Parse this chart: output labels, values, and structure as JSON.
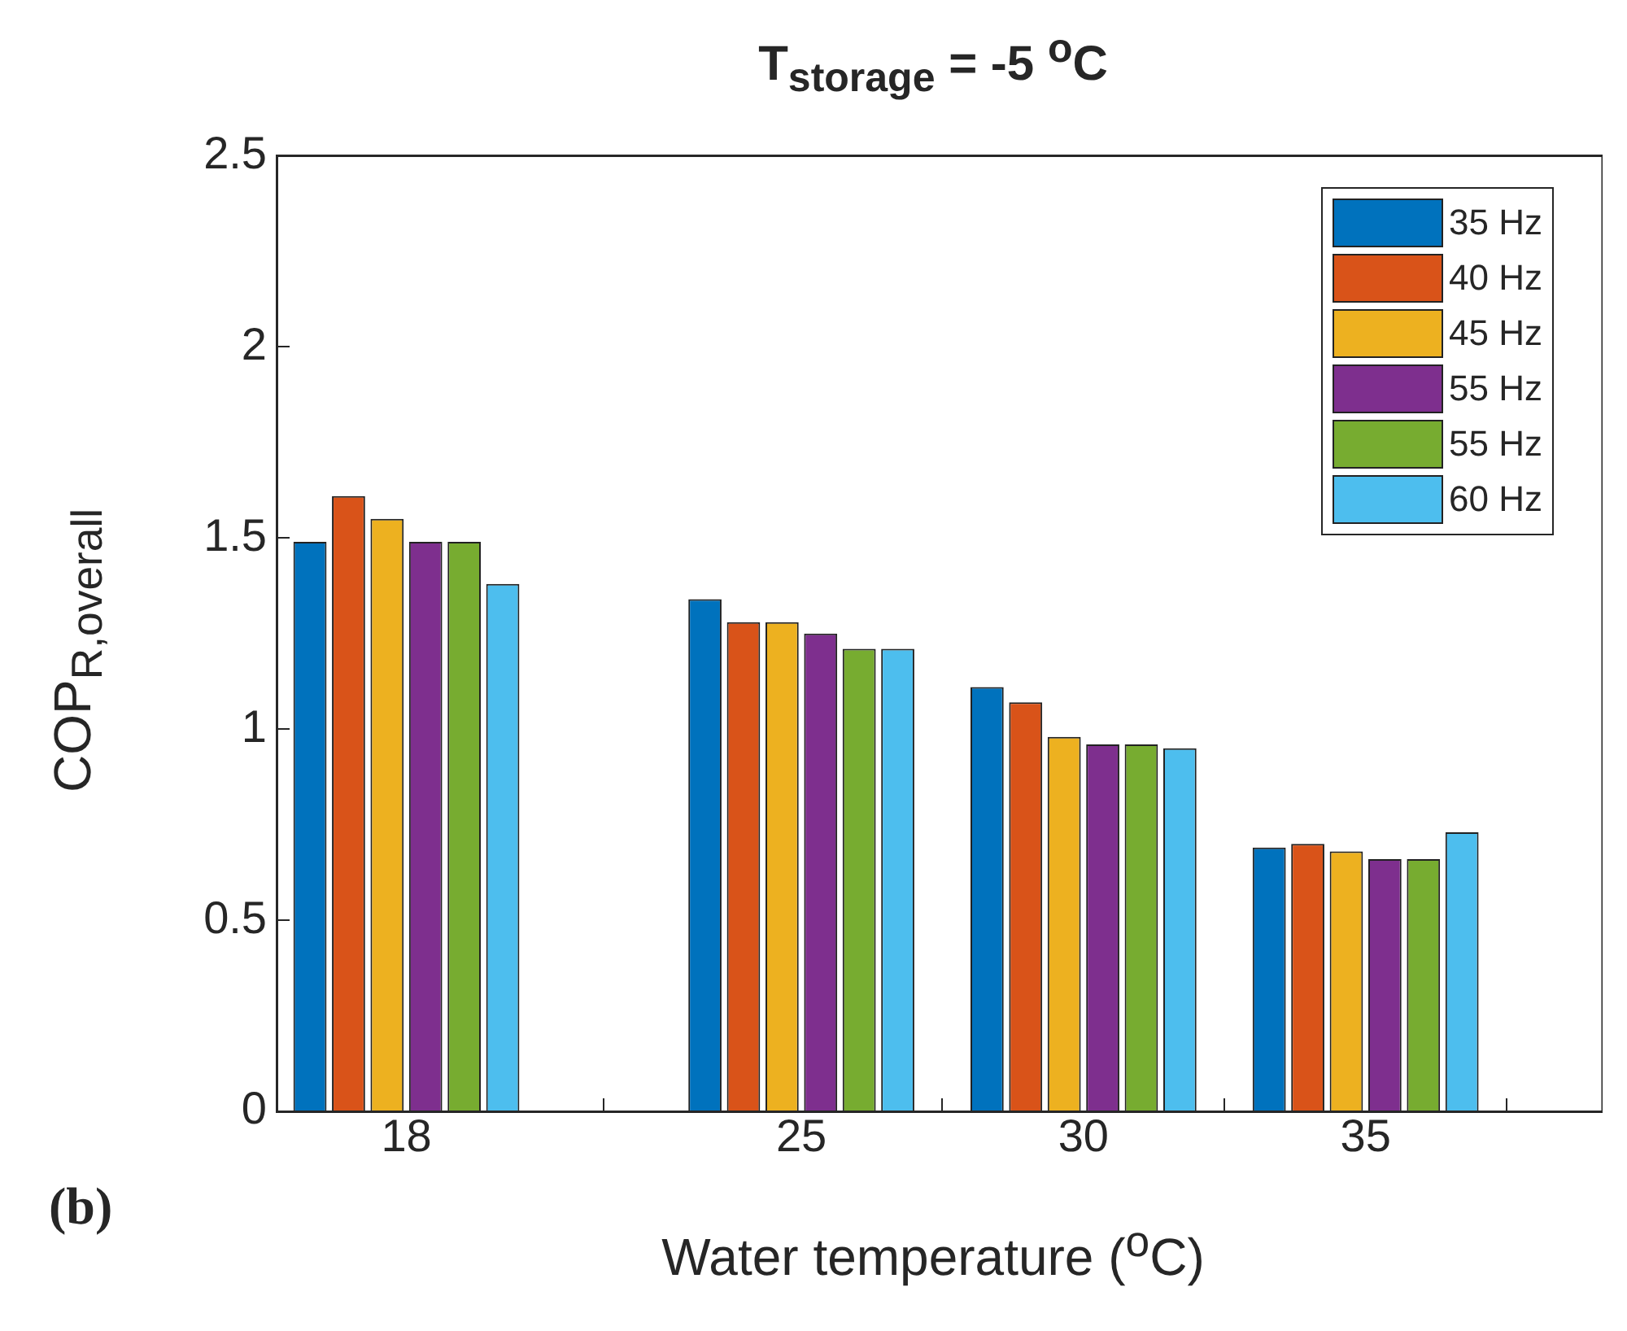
{
  "chart_data": {
    "type": "bar",
    "title": "T$_{storage}$ = -5 $^{o}$C",
    "xlabel": "Water temperature ($^{o}$C)",
    "ylabel": "COP$_{R,overall}$",
    "x": [
      18,
      25,
      30,
      35
    ],
    "series": [
      {
        "name": "35 Hz",
        "color": "#0072bd",
        "values": [
          1.49,
          1.34,
          1.11,
          0.69
        ]
      },
      {
        "name": "40 Hz",
        "color": "#d95319",
        "values": [
          1.61,
          1.28,
          1.07,
          0.7
        ]
      },
      {
        "name": "45 Hz",
        "color": "#edb120",
        "values": [
          1.55,
          1.28,
          0.98,
          0.68
        ]
      },
      {
        "name": "55 Hz",
        "color": "#7e2f8e",
        "values": [
          1.49,
          1.25,
          0.96,
          0.66
        ]
      },
      {
        "name": "55 Hz",
        "color": "#77ac30",
        "values": [
          1.49,
          1.21,
          0.96,
          0.66
        ]
      },
      {
        "name": "60 Hz",
        "color": "#4dbeee",
        "values": [
          1.38,
          1.21,
          0.95,
          0.73
        ]
      }
    ],
    "xlim": [
      15.7,
      39.2
    ],
    "xticks": [
      18,
      25,
      30,
      35
    ],
    "ylim": [
      0,
      2.5
    ],
    "yticks": [
      0,
      0.5,
      1,
      1.5,
      2,
      2.5
    ],
    "grid": false,
    "legend": "top right",
    "annotations": [
      "(b)"
    ]
  }
}
